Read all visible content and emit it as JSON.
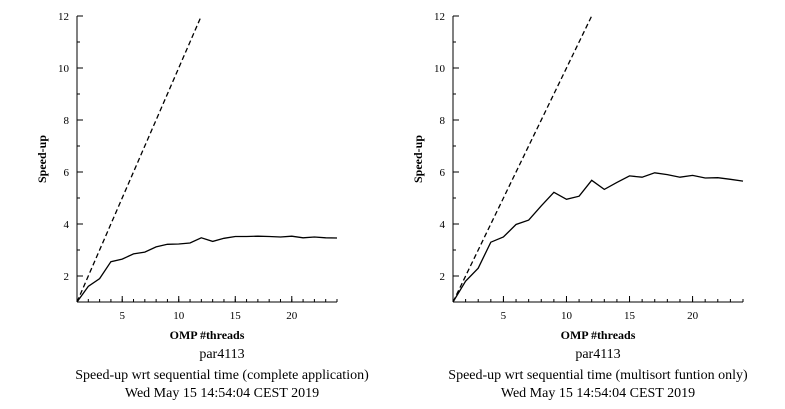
{
  "charts": [
    {
      "type": "line",
      "xlabel": "OMP #threads",
      "ylabel": "Speed-up",
      "xlim": [
        1,
        24
      ],
      "ylim": [
        1,
        12
      ],
      "x_ticks": [
        5,
        10,
        15,
        20
      ],
      "y_ticks": [
        2,
        4,
        6,
        8,
        10,
        12
      ],
      "grid": false,
      "legend": "none",
      "captions": [
        "par4113",
        "Speed-up wrt sequential time (complete application)",
        "Wed May 15 14:54:04 CEST 2019"
      ],
      "series": [
        {
          "style": "dashed",
          "x": [
            1,
            12
          ],
          "y": [
            1,
            12
          ]
        },
        {
          "style": "solid",
          "x": [
            1,
            2,
            3,
            4,
            5,
            6,
            7,
            8,
            9,
            10,
            11,
            12,
            13,
            14,
            15,
            16,
            17,
            18,
            19,
            20,
            21,
            22,
            23,
            24
          ],
          "y": [
            1.0,
            1.6,
            1.9,
            2.55,
            2.65,
            2.85,
            2.92,
            3.12,
            3.22,
            3.23,
            3.27,
            3.47,
            3.33,
            3.45,
            3.52,
            3.52,
            3.53,
            3.52,
            3.5,
            3.53,
            3.47,
            3.5,
            3.47,
            3.46
          ]
        }
      ]
    },
    {
      "type": "line",
      "xlabel": "OMP #threads",
      "ylabel": "Speed-up",
      "xlim": [
        1,
        24
      ],
      "ylim": [
        1,
        12
      ],
      "x_ticks": [
        5,
        10,
        15,
        20
      ],
      "y_ticks": [
        2,
        4,
        6,
        8,
        10,
        12
      ],
      "grid": false,
      "legend": "none",
      "captions": [
        "par4113",
        "Speed-up wrt sequential time (multisort funtion only)",
        "Wed May 15 14:54:04 CEST 2019"
      ],
      "series": [
        {
          "style": "dashed",
          "x": [
            1,
            12
          ],
          "y": [
            1,
            12
          ]
        },
        {
          "style": "solid",
          "x": [
            1,
            2,
            3,
            4,
            5,
            6,
            7,
            8,
            9,
            10,
            11,
            12,
            13,
            14,
            15,
            16,
            17,
            18,
            19,
            20,
            21,
            22,
            23,
            24
          ],
          "y": [
            1.0,
            1.8,
            2.3,
            3.3,
            3.5,
            3.98,
            4.15,
            4.7,
            5.22,
            4.95,
            5.07,
            5.68,
            5.33,
            5.6,
            5.85,
            5.8,
            5.97,
            5.9,
            5.8,
            5.87,
            5.77,
            5.78,
            5.72,
            5.65
          ]
        }
      ]
    }
  ]
}
